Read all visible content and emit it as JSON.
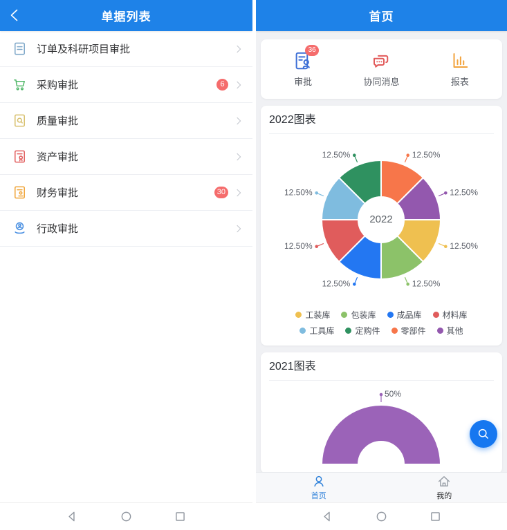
{
  "colors": {
    "header_blue": "#1E82E8",
    "accent_blue": "#1677F0",
    "badge_red": "#F56C6C",
    "content_bg": "#F0F1F4",
    "tab_active_blue": "#2B7FD9"
  },
  "left_screen": {
    "header": {
      "title": "单据列表",
      "back_icon": "chevron-left-icon"
    },
    "menu": [
      {
        "label": "订单及科研项目审批",
        "icon": "doc-lines-icon",
        "icon_color": "#7FA8C9",
        "badge": null
      },
      {
        "label": "采购审批",
        "icon": "cart-icon",
        "icon_color": "#52B86A",
        "badge": "6"
      },
      {
        "label": "质量审批",
        "icon": "doc-search-icon",
        "icon_color": "#D8C06E",
        "badge": null
      },
      {
        "label": "资产审批",
        "icon": "doc-seal-icon",
        "icon_color": "#E26060",
        "badge": null
      },
      {
        "label": "财务审批",
        "icon": "doc-stamp-icon",
        "icon_color": "#F0A53A",
        "badge": "30"
      },
      {
        "label": "行政审批",
        "icon": "person-service-icon",
        "icon_color": "#4A90E2",
        "badge": null
      }
    ]
  },
  "right_screen": {
    "header": {
      "title": "首页"
    },
    "quick_actions": [
      {
        "label": "审批",
        "icon": "approve-icon",
        "icon_color": "#3D6FD6",
        "badge": "36"
      },
      {
        "label": "协同消息",
        "icon": "message-icon",
        "icon_color": "#E25A5A",
        "badge": null
      },
      {
        "label": "报表",
        "icon": "report-icon",
        "icon_color": "#F2A33C",
        "badge": null
      }
    ],
    "fab": {
      "icon": "search-icon"
    },
    "tab_bar": [
      {
        "label": "首页",
        "icon": "person-icon",
        "active": true
      },
      {
        "label": "我的",
        "icon": "home-icon",
        "active": false
      }
    ]
  },
  "android_nav": {
    "icons": [
      "back-triangle-icon",
      "home-circle-icon",
      "recents-square-icon"
    ]
  },
  "chart_data": [
    {
      "type": "pie",
      "donut": true,
      "title": "2022图表",
      "center_label": "2022",
      "categories": [
        "工装库",
        "包装库",
        "成品库",
        "材料库",
        "工具库",
        "定购件",
        "零部件",
        "其他"
      ],
      "values": [
        12.5,
        12.5,
        12.5,
        12.5,
        12.5,
        12.5,
        12.5,
        12.5
      ],
      "labels": [
        "12.50%",
        "12.50%",
        "12.50%",
        "12.50%",
        "12.50%",
        "12.50%",
        "12.50%",
        "12.50%"
      ],
      "colors": [
        "#EFC050",
        "#8CC269",
        "#2377F2",
        "#E05C5C",
        "#7FBCDF",
        "#2F9160",
        "#F7764A",
        "#9358AE"
      ],
      "start_angle_deg": 0,
      "direction": "clockwise",
      "legend_position": "bottom"
    },
    {
      "type": "pie",
      "donut": true,
      "title": "2021图表",
      "categories": [],
      "values": [
        50
      ],
      "labels": [
        "50%"
      ],
      "colors": [
        "#9B63B8"
      ],
      "start_angle_deg": 180,
      "direction": "clockwise",
      "partially_visible": true
    }
  ]
}
